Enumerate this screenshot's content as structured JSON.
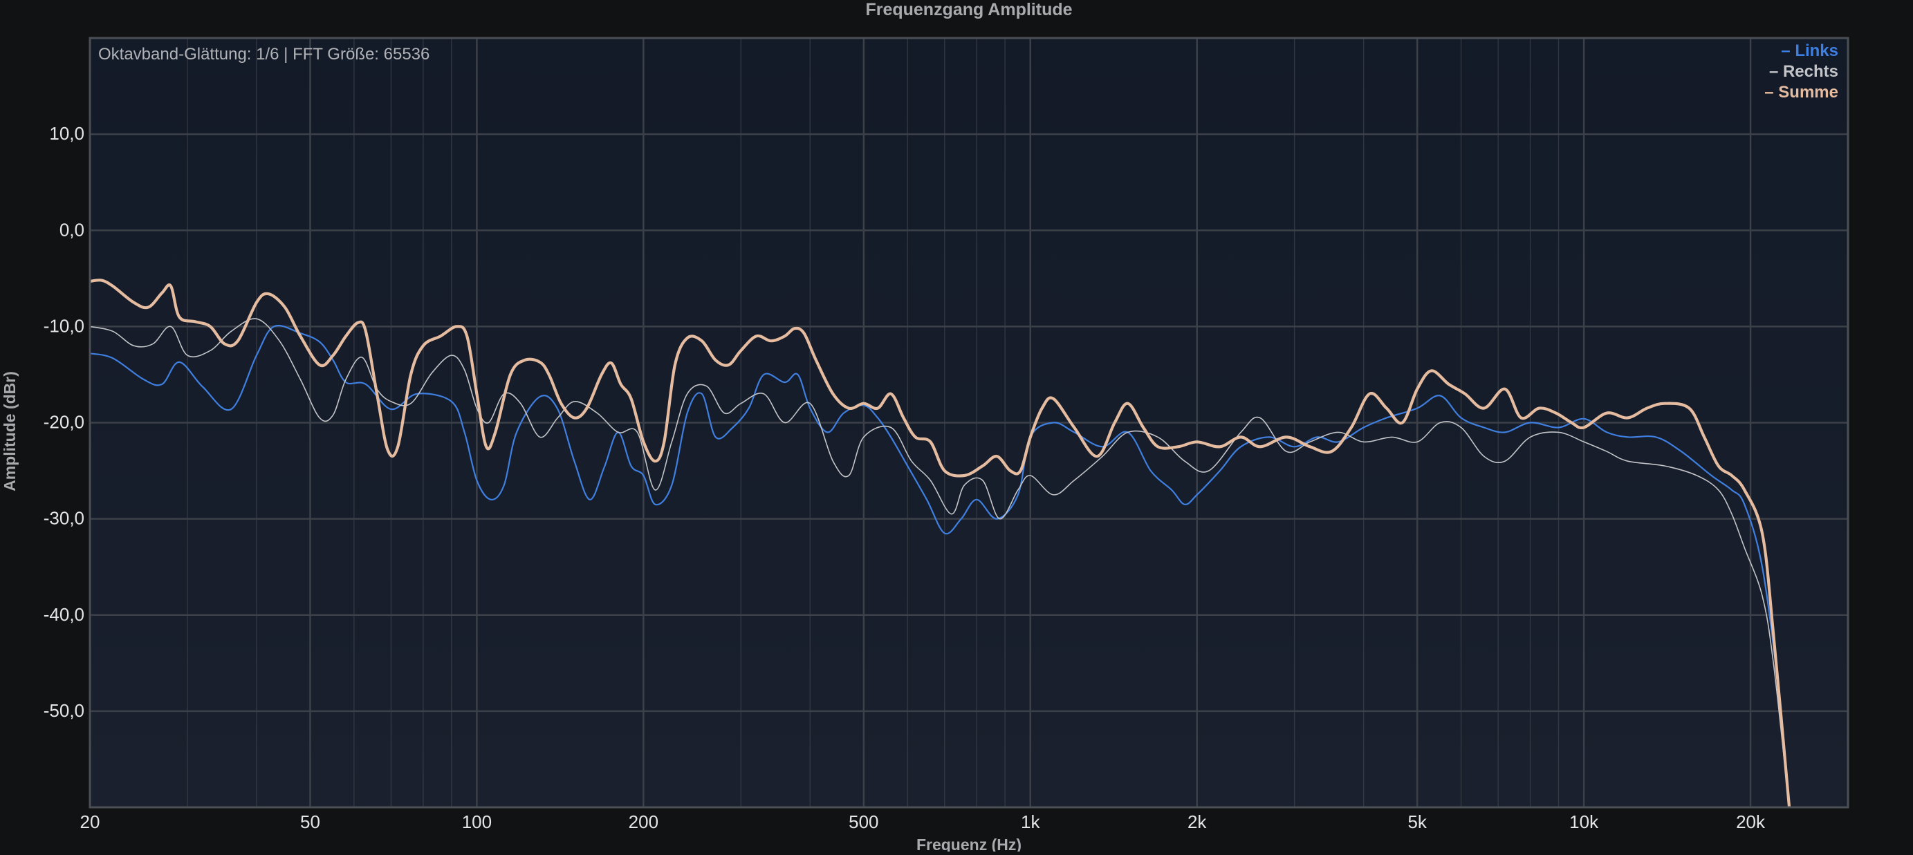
{
  "chart_data": {
    "type": "line",
    "title": "Frequenzgang Amplitude",
    "subtitle": "Oktavband-Glättung: 1/6 | FFT Größe: 65536",
    "xlabel": "Frequenz (Hz)",
    "ylabel": "Amplitude (dBr)",
    "xscale": "log",
    "xlim": [
      20,
      30000
    ],
    "ylim": [
      -60,
      20
    ],
    "xticks": [
      {
        "value": 20,
        "label": "20"
      },
      {
        "value": 50,
        "label": "50"
      },
      {
        "value": 100,
        "label": "100"
      },
      {
        "value": 200,
        "label": "200"
      },
      {
        "value": 500,
        "label": "500"
      },
      {
        "value": 1000,
        "label": "1k"
      },
      {
        "value": 2000,
        "label": "2k"
      },
      {
        "value": 5000,
        "label": "5k"
      },
      {
        "value": 10000,
        "label": "10k"
      },
      {
        "value": 20000,
        "label": "20k"
      }
    ],
    "yticks": [
      {
        "value": 10,
        "label": "10,0"
      },
      {
        "value": 0,
        "label": "0,0"
      },
      {
        "value": -10,
        "label": "-10,0"
      },
      {
        "value": -20,
        "label": "-20,0"
      },
      {
        "value": -30,
        "label": "-30,0"
      },
      {
        "value": -40,
        "label": "-40,0"
      },
      {
        "value": -50,
        "label": "-50,0"
      }
    ],
    "grid": true,
    "legend_position": "top-right",
    "legend_prefix": "–",
    "series": [
      {
        "name": "Links",
        "color": "#3f7fe0",
        "points": [
          [
            20,
            -12.8
          ],
          [
            22,
            -13.3
          ],
          [
            25,
            -15.5
          ],
          [
            27,
            -16.0
          ],
          [
            29,
            -13.7
          ],
          [
            32,
            -16.3
          ],
          [
            36,
            -18.6
          ],
          [
            40,
            -13.0
          ],
          [
            43,
            -10.0
          ],
          [
            48,
            -10.7
          ],
          [
            52,
            -11.6
          ],
          [
            55,
            -13.5
          ],
          [
            58,
            -15.8
          ],
          [
            63,
            -16.0
          ],
          [
            70,
            -18.6
          ],
          [
            78,
            -17.0
          ],
          [
            90,
            -17.8
          ],
          [
            95,
            -21.0
          ],
          [
            100,
            -26.0
          ],
          [
            106,
            -28.0
          ],
          [
            112,
            -26.5
          ],
          [
            118,
            -21.0
          ],
          [
            130,
            -17.3
          ],
          [
            140,
            -18.6
          ],
          [
            150,
            -24.0
          ],
          [
            160,
            -28.0
          ],
          [
            170,
            -24.6
          ],
          [
            180,
            -21.0
          ],
          [
            190,
            -24.5
          ],
          [
            200,
            -25.5
          ],
          [
            210,
            -28.5
          ],
          [
            225,
            -26.5
          ],
          [
            240,
            -19.0
          ],
          [
            255,
            -17.0
          ],
          [
            270,
            -21.5
          ],
          [
            290,
            -20.5
          ],
          [
            310,
            -18.5
          ],
          [
            330,
            -15.0
          ],
          [
            360,
            -15.8
          ],
          [
            380,
            -15.0
          ],
          [
            400,
            -18.5
          ],
          [
            430,
            -21.0
          ],
          [
            460,
            -19.0
          ],
          [
            500,
            -18.2
          ],
          [
            530,
            -19.5
          ],
          [
            560,
            -21.5
          ],
          [
            600,
            -24.5
          ],
          [
            650,
            -28.0
          ],
          [
            700,
            -31.5
          ],
          [
            750,
            -30.0
          ],
          [
            800,
            -28.0
          ],
          [
            870,
            -30.0
          ],
          [
            950,
            -27.5
          ],
          [
            1000,
            -21.5
          ],
          [
            1100,
            -20.0
          ],
          [
            1200,
            -21.0
          ],
          [
            1350,
            -22.5
          ],
          [
            1500,
            -21.0
          ],
          [
            1650,
            -25.0
          ],
          [
            1800,
            -27.0
          ],
          [
            1900,
            -28.5
          ],
          [
            2000,
            -27.5
          ],
          [
            2200,
            -25.0
          ],
          [
            2400,
            -22.5
          ],
          [
            2700,
            -21.5
          ],
          [
            3000,
            -22.5
          ],
          [
            3300,
            -21.5
          ],
          [
            3600,
            -22.0
          ],
          [
            4000,
            -20.5
          ],
          [
            4400,
            -19.5
          ],
          [
            5000,
            -18.5
          ],
          [
            5500,
            -17.2
          ],
          [
            6000,
            -19.5
          ],
          [
            6600,
            -20.5
          ],
          [
            7200,
            -21.0
          ],
          [
            8000,
            -20.0
          ],
          [
            9000,
            -20.5
          ],
          [
            10000,
            -19.6
          ],
          [
            11000,
            -21.0
          ],
          [
            12000,
            -21.5
          ],
          [
            13500,
            -21.5
          ],
          [
            15000,
            -23.0
          ],
          [
            17000,
            -25.5
          ],
          [
            18500,
            -27.0
          ],
          [
            19500,
            -28.5
          ],
          [
            21000,
            -35.0
          ],
          [
            22500,
            -48.0
          ],
          [
            23500,
            -60.0
          ]
        ]
      },
      {
        "name": "Rechts",
        "color": "#c2c4c8",
        "points": [
          [
            20,
            -10.0
          ],
          [
            22,
            -10.5
          ],
          [
            24,
            -12.0
          ],
          [
            26,
            -11.8
          ],
          [
            28,
            -10.0
          ],
          [
            30,
            -13.0
          ],
          [
            33,
            -12.5
          ],
          [
            36,
            -10.5
          ],
          [
            40,
            -9.2
          ],
          [
            44,
            -11.5
          ],
          [
            48,
            -15.5
          ],
          [
            52,
            -19.5
          ],
          [
            55,
            -19.2
          ],
          [
            58,
            -15.5
          ],
          [
            62,
            -13.2
          ],
          [
            66,
            -16.5
          ],
          [
            70,
            -17.8
          ],
          [
            76,
            -18.0
          ],
          [
            83,
            -14.8
          ],
          [
            90,
            -13.0
          ],
          [
            95,
            -14.5
          ],
          [
            100,
            -18.5
          ],
          [
            105,
            -20.0
          ],
          [
            112,
            -17.0
          ],
          [
            120,
            -18.0
          ],
          [
            130,
            -21.5
          ],
          [
            140,
            -19.5
          ],
          [
            150,
            -17.8
          ],
          [
            165,
            -19.0
          ],
          [
            180,
            -21.0
          ],
          [
            195,
            -21.0
          ],
          [
            210,
            -27.0
          ],
          [
            225,
            -22.0
          ],
          [
            240,
            -17.0
          ],
          [
            260,
            -16.2
          ],
          [
            280,
            -19.0
          ],
          [
            300,
            -18.0
          ],
          [
            330,
            -17.0
          ],
          [
            360,
            -20.0
          ],
          [
            400,
            -18.0
          ],
          [
            440,
            -24.0
          ],
          [
            470,
            -25.5
          ],
          [
            500,
            -21.5
          ],
          [
            560,
            -20.5
          ],
          [
            610,
            -24.0
          ],
          [
            660,
            -26.0
          ],
          [
            720,
            -29.5
          ],
          [
            760,
            -26.5
          ],
          [
            820,
            -26.0
          ],
          [
            880,
            -30.0
          ],
          [
            950,
            -27.0
          ],
          [
            1000,
            -25.5
          ],
          [
            1100,
            -27.5
          ],
          [
            1200,
            -26.0
          ],
          [
            1350,
            -23.5
          ],
          [
            1500,
            -21.0
          ],
          [
            1700,
            -21.5
          ],
          [
            1900,
            -24.0
          ],
          [
            2100,
            -25.0
          ],
          [
            2400,
            -21.0
          ],
          [
            2600,
            -19.5
          ],
          [
            2900,
            -23.0
          ],
          [
            3200,
            -22.0
          ],
          [
            3600,
            -21.0
          ],
          [
            4000,
            -22.0
          ],
          [
            4500,
            -21.5
          ],
          [
            5000,
            -22.0
          ],
          [
            5500,
            -20.0
          ],
          [
            6000,
            -20.5
          ],
          [
            6600,
            -23.5
          ],
          [
            7200,
            -24.0
          ],
          [
            8000,
            -21.5
          ],
          [
            9000,
            -21.0
          ],
          [
            10000,
            -22.0
          ],
          [
            11000,
            -23.0
          ],
          [
            12000,
            -24.0
          ],
          [
            14000,
            -24.5
          ],
          [
            16000,
            -25.5
          ],
          [
            17500,
            -27.0
          ],
          [
            18500,
            -29.5
          ],
          [
            19500,
            -33.0
          ],
          [
            21000,
            -38.0
          ],
          [
            22000,
            -45.0
          ],
          [
            23500,
            -60.0
          ]
        ]
      },
      {
        "name": "Summe",
        "color": "#e6bca0",
        "points": [
          [
            20,
            -5.3
          ],
          [
            21,
            -5.2
          ],
          [
            22,
            -5.8
          ],
          [
            24,
            -7.5
          ],
          [
            25.5,
            -8.0
          ],
          [
            27,
            -6.5
          ],
          [
            28,
            -5.8
          ],
          [
            29,
            -9.0
          ],
          [
            31,
            -9.5
          ],
          [
            33,
            -10.0
          ],
          [
            35,
            -11.8
          ],
          [
            37,
            -11.5
          ],
          [
            40,
            -7.5
          ],
          [
            42,
            -6.6
          ],
          [
            45,
            -8.0
          ],
          [
            48,
            -11.0
          ],
          [
            52,
            -14.0
          ],
          [
            55,
            -13.0
          ],
          [
            58,
            -11.0
          ],
          [
            61,
            -9.6
          ],
          [
            63,
            -10.5
          ],
          [
            66,
            -17.0
          ],
          [
            69,
            -22.8
          ],
          [
            72,
            -22.5
          ],
          [
            76,
            -15.0
          ],
          [
            80,
            -12.0
          ],
          [
            86,
            -11.0
          ],
          [
            92,
            -10.0
          ],
          [
            96,
            -11.0
          ],
          [
            100,
            -17.0
          ],
          [
            104,
            -22.5
          ],
          [
            108,
            -21.0
          ],
          [
            115,
            -15.0
          ],
          [
            122,
            -13.5
          ],
          [
            130,
            -13.7
          ],
          [
            135,
            -15.0
          ],
          [
            142,
            -18.0
          ],
          [
            150,
            -19.5
          ],
          [
            158,
            -18.5
          ],
          [
            168,
            -15.0
          ],
          [
            175,
            -13.8
          ],
          [
            182,
            -16.0
          ],
          [
            190,
            -17.5
          ],
          [
            200,
            -22.0
          ],
          [
            210,
            -24.0
          ],
          [
            218,
            -22.0
          ],
          [
            228,
            -14.0
          ],
          [
            240,
            -11.2
          ],
          [
            255,
            -11.5
          ],
          [
            270,
            -13.5
          ],
          [
            285,
            -14.0
          ],
          [
            300,
            -12.5
          ],
          [
            320,
            -11.0
          ],
          [
            340,
            -11.5
          ],
          [
            360,
            -11.0
          ],
          [
            375,
            -10.2
          ],
          [
            390,
            -10.7
          ],
          [
            410,
            -13.5
          ],
          [
            440,
            -17.0
          ],
          [
            470,
            -18.5
          ],
          [
            500,
            -18.0
          ],
          [
            530,
            -18.5
          ],
          [
            560,
            -17.0
          ],
          [
            590,
            -19.5
          ],
          [
            620,
            -21.5
          ],
          [
            660,
            -22.0
          ],
          [
            700,
            -25.0
          ],
          [
            760,
            -25.5
          ],
          [
            820,
            -24.5
          ],
          [
            870,
            -23.5
          ],
          [
            920,
            -25.0
          ],
          [
            960,
            -25.0
          ],
          [
            1000,
            -21.5
          ],
          [
            1050,
            -18.5
          ],
          [
            1100,
            -17.5
          ],
          [
            1200,
            -20.5
          ],
          [
            1320,
            -23.5
          ],
          [
            1420,
            -20.0
          ],
          [
            1500,
            -18.0
          ],
          [
            1600,
            -20.5
          ],
          [
            1700,
            -22.5
          ],
          [
            1850,
            -22.5
          ],
          [
            2000,
            -22.0
          ],
          [
            2200,
            -22.5
          ],
          [
            2400,
            -21.5
          ],
          [
            2600,
            -22.5
          ],
          [
            2900,
            -21.5
          ],
          [
            3200,
            -22.5
          ],
          [
            3500,
            -23.0
          ],
          [
            3800,
            -20.5
          ],
          [
            4100,
            -17.0
          ],
          [
            4400,
            -18.5
          ],
          [
            4700,
            -20.0
          ],
          [
            5000,
            -16.5
          ],
          [
            5300,
            -14.6
          ],
          [
            5700,
            -16.0
          ],
          [
            6100,
            -17.0
          ],
          [
            6600,
            -18.5
          ],
          [
            7200,
            -16.5
          ],
          [
            7700,
            -19.5
          ],
          [
            8300,
            -18.5
          ],
          [
            8900,
            -19.0
          ],
          [
            9500,
            -20.0
          ],
          [
            10000,
            -20.5
          ],
          [
            11000,
            -19.0
          ],
          [
            12000,
            -19.5
          ],
          [
            13000,
            -18.5
          ],
          [
            14000,
            -18.0
          ],
          [
            15500,
            -18.5
          ],
          [
            16500,
            -21.5
          ],
          [
            17500,
            -24.5
          ],
          [
            18500,
            -25.5
          ],
          [
            19500,
            -27.0
          ],
          [
            21000,
            -31.5
          ],
          [
            22000,
            -42.0
          ],
          [
            23500,
            -60.0
          ]
        ]
      }
    ],
    "styles": {
      "page_background": "#111214",
      "plot_background_top": "#131a28",
      "plot_background_bottom": "#1a202d",
      "grid_color": "#3c4048",
      "frame_color": "#4a4e55",
      "title_color": "#a8aaae",
      "tick_label_color": "#e4e5e7",
      "subtitle_color": "#b0b2b6"
    }
  }
}
